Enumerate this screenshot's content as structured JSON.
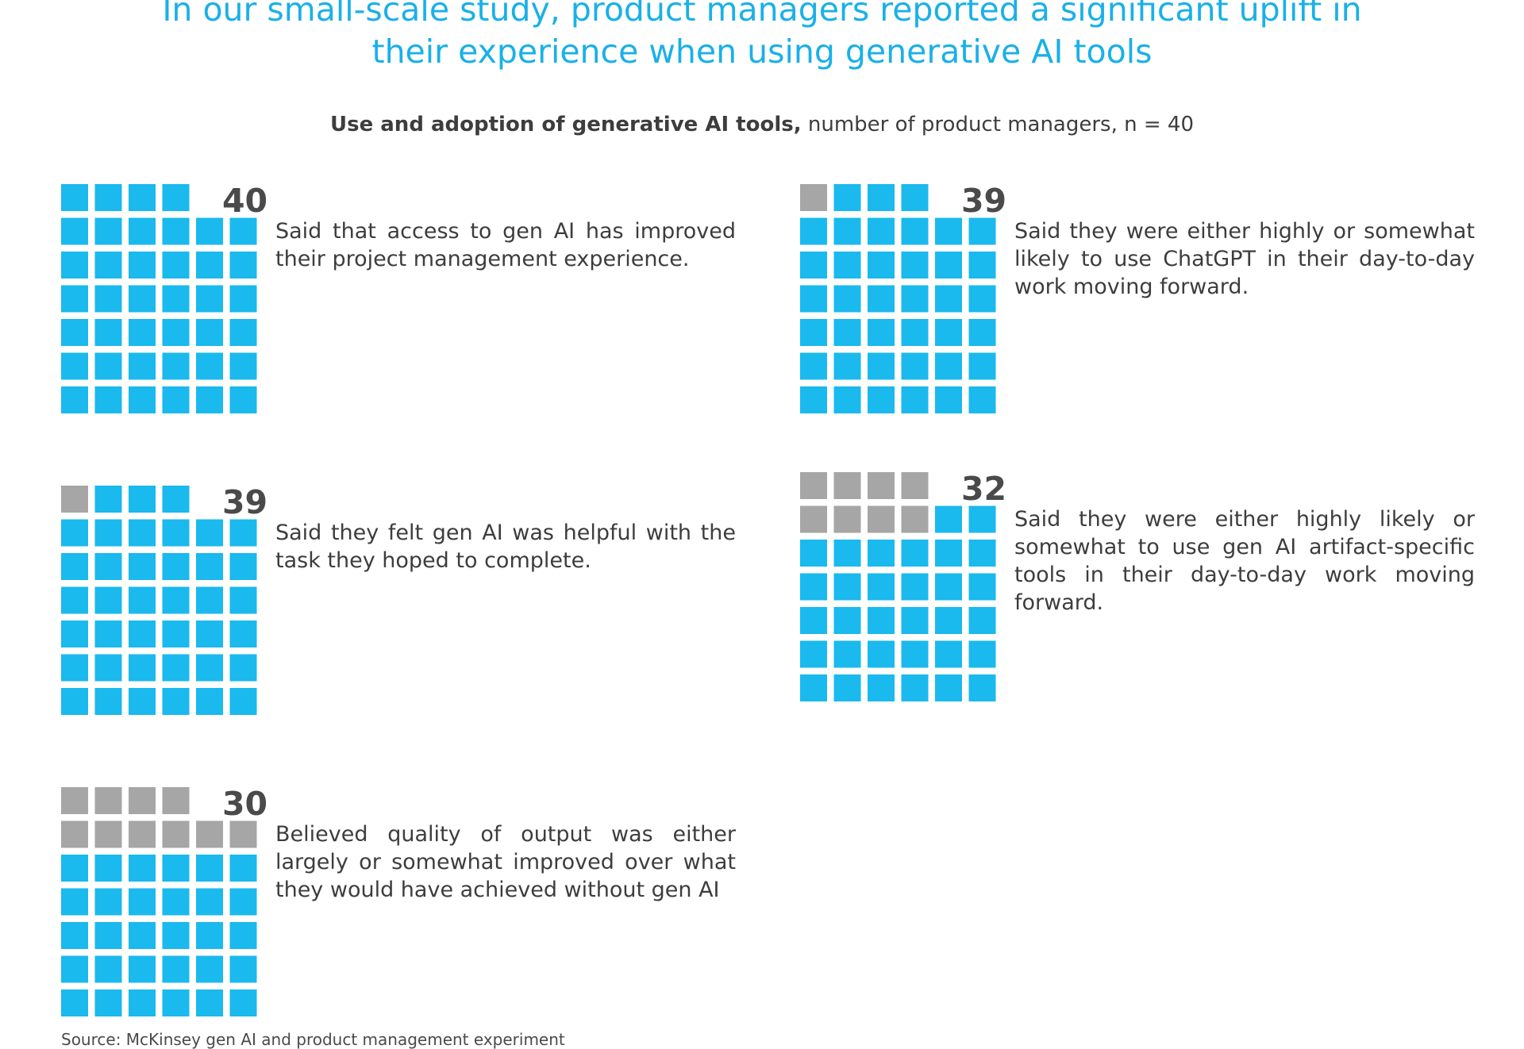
{
  "title_line1": "In our small-scale study, product managers reported a significant uplift in",
  "title_line2": "their experience when using generative AI tools",
  "subtitle_bold": "Use and adoption of generative AI tools,",
  "subtitle_rest": " number of product managers, n = 40",
  "source": "Source: McKinsey gen AI and product management experiment",
  "colors": {
    "filled": "#1ab9ee",
    "empty": "#a6a6a6",
    "title": "#1ab0e8",
    "text": "#3d3d3d"
  },
  "chart_data": {
    "type": "waffle",
    "total": 40,
    "title": "In our small-scale study, product managers reported a significant uplift in their experience when using generative AI tools",
    "subtitle": "Use and adoption of generative AI tools, number of product managers, n = 40",
    "items": [
      {
        "value": 40,
        "label": "Said that access to gen AI has improved their project management experience."
      },
      {
        "value": 39,
        "label": "Said they were either highly  or somewhat likely to use ChatGPT in their day-to-day work moving forward."
      },
      {
        "value": 39,
        "label": "Said they felt gen AI was helpful with the task they hoped to complete."
      },
      {
        "value": 32,
        "label": "Said they were either highly likely or somewhat  to use gen AI artifact-specific tools in their day-to-day work moving forward."
      },
      {
        "value": 30,
        "label": "Believed quality of output was either largely or somewhat improved over what they would have achieved without gen AI"
      }
    ]
  }
}
